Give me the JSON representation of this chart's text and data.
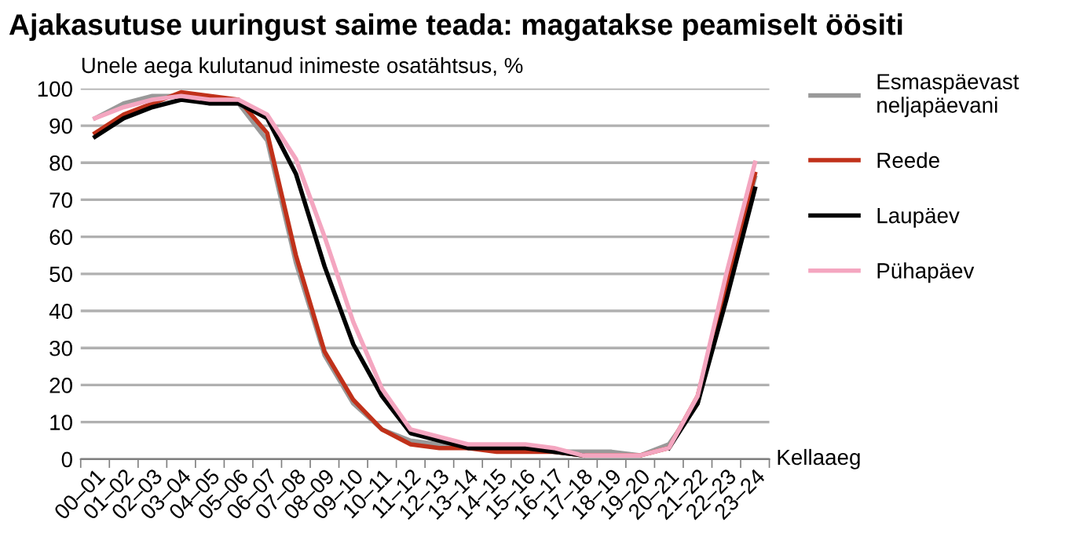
{
  "chart_data": {
    "type": "line",
    "title": "Ajakasutuse uuringust saime teada: magatakse peamiselt öösiti",
    "ylabel": "Unele aega kulutanud inimeste osatähtsus, %",
    "xlabel": "Kellaaeg",
    "categories": [
      "00–01",
      "01–02",
      "02–03",
      "03–04",
      "04–05",
      "05–06",
      "06–07",
      "07–08",
      "08–09",
      "09–10",
      "10–11",
      "11–12",
      "12–13",
      "13–14",
      "14–15",
      "15–16",
      "16–17",
      "17–18",
      "18–19",
      "19–20",
      "20–21",
      "21–22",
      "22–23",
      "23–24"
    ],
    "ylim": [
      0,
      100
    ],
    "yticks": [
      0,
      10,
      20,
      30,
      40,
      50,
      60,
      70,
      80,
      90,
      100
    ],
    "grid": "y",
    "legend": "right",
    "marker": "none",
    "line_style": "solid",
    "series": [
      {
        "name": "Esmaspäevast neljapäevani",
        "color": "#999999",
        "values": [
          92,
          96,
          98,
          98,
          96,
          96,
          86,
          53,
          28,
          15,
          8,
          5,
          4,
          3,
          3,
          3,
          2,
          2,
          2,
          1,
          4,
          15,
          48,
          76
        ]
      },
      {
        "name": "Reede",
        "color": "#c0311a",
        "values": [
          88,
          93,
          96,
          99,
          98,
          97,
          88,
          55,
          29,
          16,
          8,
          4,
          3,
          3,
          2,
          2,
          2,
          1,
          1,
          1,
          3,
          17,
          47,
          77
        ]
      },
      {
        "name": "Laupäev",
        "color": "#000000",
        "values": [
          87,
          92,
          95,
          97,
          96,
          96,
          92,
          77,
          52,
          31,
          17,
          7,
          5,
          3,
          3,
          3,
          2,
          1,
          null,
          null,
          3,
          15,
          43,
          73
        ]
      },
      {
        "name": "Pühapäev",
        "color": "#f4a6c0",
        "values": [
          92,
          95,
          97,
          98,
          97,
          97,
          93,
          81,
          60,
          37,
          19,
          8,
          6,
          4,
          4,
          4,
          3,
          1,
          1,
          1,
          3,
          17,
          50,
          80
        ]
      }
    ]
  }
}
